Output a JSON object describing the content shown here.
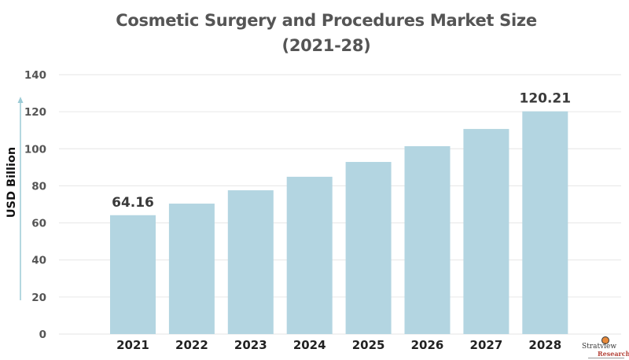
{
  "chart_data": {
    "type": "bar",
    "title": "Cosmetic Surgery and Procedures Market Size",
    "subtitle": "(2021-28)",
    "xlabel": "",
    "ylabel": "USD Billion",
    "categories": [
      "2021",
      "2022",
      "2023",
      "2024",
      "2025",
      "2026",
      "2027",
      "2028"
    ],
    "values": [
      64.16,
      70.4,
      77.6,
      84.9,
      92.9,
      101.4,
      110.7,
      120.21
    ],
    "data_labels": [
      {
        "category": "2021",
        "text": "64.16"
      },
      {
        "category": "2028",
        "text": "120.21"
      }
    ],
    "ylim": [
      0,
      140
    ],
    "yticks": [
      0,
      20,
      40,
      60,
      80,
      100,
      120,
      140
    ],
    "grid": true,
    "bar_color": "#b3d5e1",
    "grid_color": "#e6e6e6",
    "arrow_color": "#9ccbd6"
  },
  "branding": {
    "logo_name": "Stratview",
    "logo_sub": "Research"
  }
}
